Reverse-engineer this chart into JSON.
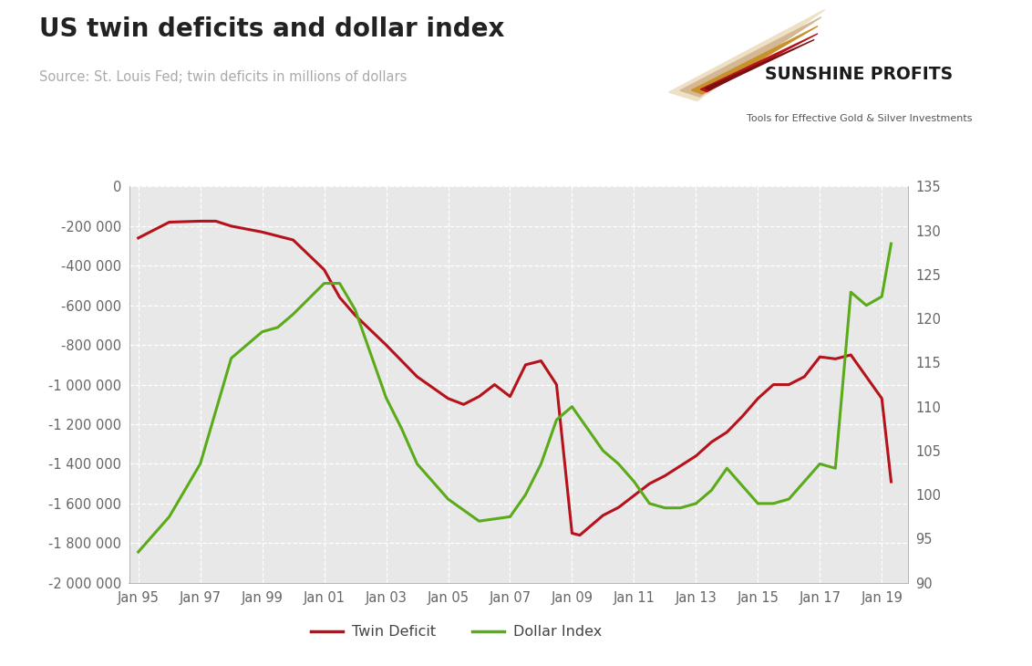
{
  "title": "US twin deficits and dollar index",
  "subtitle": "Source: St. Louis Fed; twin deficits in millions of dollars",
  "bg_plot": "#e8e8e8",
  "bg_outer": "#ffffff",
  "twin_color": "#b5121b",
  "dollar_color": "#5aab19",
  "line_width": 2.2,
  "left_ylim": [
    -2000000,
    0
  ],
  "right_ylim": [
    90,
    135
  ],
  "left_yticks": [
    0,
    -200000,
    -400000,
    -600000,
    -800000,
    -1000000,
    -1200000,
    -1400000,
    -1600000,
    -1800000,
    -2000000
  ],
  "right_yticks": [
    90,
    95,
    100,
    105,
    110,
    115,
    120,
    125,
    130,
    135
  ],
  "xtick_labels": [
    "Jan 95",
    "Jan 97",
    "Jan 99",
    "Jan 01",
    "Jan 03",
    "Jan 05",
    "Jan 07",
    "Jan 09",
    "Jan 11",
    "Jan 13",
    "Jan 15",
    "Jan 17",
    "Jan 19"
  ],
  "xtick_positions": [
    1995,
    1997,
    1999,
    2001,
    2003,
    2005,
    2007,
    2009,
    2011,
    2013,
    2015,
    2017,
    2019
  ],
  "legend_labels": [
    "Twin Deficit",
    "Dollar Index"
  ],
  "twin_x": [
    1995.0,
    1996.0,
    1997.0,
    1997.5,
    1998.0,
    1999.0,
    2000.0,
    2001.0,
    2001.5,
    2002.0,
    2003.0,
    2004.0,
    2005.0,
    2005.5,
    2006.0,
    2006.5,
    2007.0,
    2007.5,
    2008.0,
    2008.5,
    2009.0,
    2009.25,
    2010.0,
    2010.5,
    2011.0,
    2011.5,
    2012.0,
    2012.5,
    2013.0,
    2013.5,
    2014.0,
    2014.5,
    2015.0,
    2015.5,
    2016.0,
    2016.5,
    2017.0,
    2017.5,
    2018.0,
    2018.5,
    2019.0,
    2019.3
  ],
  "twin_y": [
    -260000,
    -180000,
    -175000,
    -175000,
    -200000,
    -230000,
    -270000,
    -420000,
    -560000,
    -650000,
    -800000,
    -960000,
    -1070000,
    -1100000,
    -1060000,
    -1000000,
    -1060000,
    -900000,
    -880000,
    -1000000,
    -1750000,
    -1760000,
    -1660000,
    -1620000,
    -1560000,
    -1500000,
    -1460000,
    -1410000,
    -1360000,
    -1290000,
    -1240000,
    -1160000,
    -1070000,
    -1000000,
    -1000000,
    -960000,
    -860000,
    -870000,
    -850000,
    -960000,
    -1070000,
    -1490000
  ],
  "dollar_x": [
    1995.0,
    1995.5,
    1996.0,
    1997.0,
    1998.0,
    1999.0,
    1999.5,
    2000.0,
    2001.0,
    2001.5,
    2002.0,
    2002.5,
    2003.0,
    2003.5,
    2004.0,
    2005.0,
    2006.0,
    2007.0,
    2007.5,
    2008.0,
    2008.5,
    2009.0,
    2009.5,
    2010.0,
    2010.5,
    2011.0,
    2011.5,
    2012.0,
    2012.5,
    2013.0,
    2013.5,
    2014.0,
    2014.5,
    2015.0,
    2015.5,
    2016.0,
    2016.5,
    2017.0,
    2017.5,
    2018.0,
    2018.5,
    2019.0,
    2019.3
  ],
  "dollar_y": [
    93.5,
    95.5,
    97.5,
    103.5,
    115.5,
    118.5,
    119.0,
    120.5,
    124.0,
    124.0,
    121.0,
    116.0,
    111.0,
    107.5,
    103.5,
    99.5,
    97.0,
    97.5,
    100.0,
    103.5,
    108.5,
    110.0,
    107.5,
    105.0,
    103.5,
    101.5,
    99.0,
    98.5,
    98.5,
    99.0,
    100.5,
    103.0,
    101.0,
    99.0,
    99.0,
    99.5,
    101.5,
    103.5,
    103.0,
    123.0,
    121.5,
    122.5,
    128.5
  ]
}
